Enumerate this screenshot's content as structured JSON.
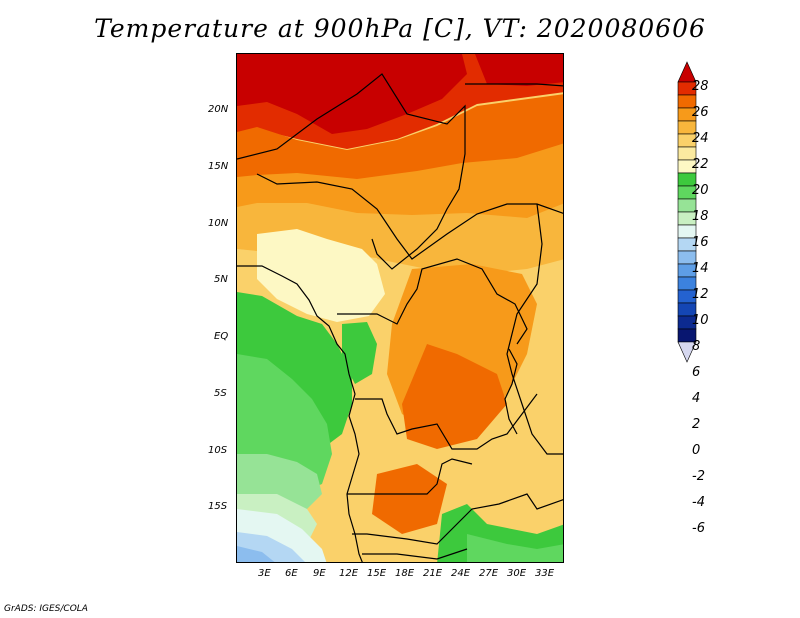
{
  "title": "Temperature at 900hPa [C], VT: 2020080606",
  "footer": "GrADS: IGES/COLA",
  "map": {
    "lat_ticks": [
      "20N",
      "15N",
      "10N",
      "5N",
      "EQ",
      "5S",
      "10S",
      "15S"
    ],
    "lon_ticks": [
      "3E",
      "6E",
      "9E",
      "12E",
      "15E",
      "18E",
      "21E",
      "24E",
      "27E",
      "30E",
      "33E"
    ]
  },
  "colorbar": {
    "labels": [
      "28",
      "26",
      "24",
      "22",
      "20",
      "18",
      "16",
      "14",
      "12",
      "10",
      "8",
      "6",
      "4",
      "2",
      "0",
      "-2",
      "-4",
      "-6"
    ],
    "colors": [
      "#c80000",
      "#e22c00",
      "#f06a00",
      "#f79a1a",
      "#f8b63c",
      "#fad16a",
      "#fbeaa0",
      "#fdf8c4",
      "#3dc93d",
      "#5fd75f",
      "#96e396",
      "#c9f0c2",
      "#e4f7f2",
      "#b4d7f3",
      "#8cbdee",
      "#5e9ee6",
      "#3c82de",
      "#2462d0",
      "#1446b4",
      "#0c2a90",
      "#081670",
      "#d6d8f0"
    ]
  },
  "legend_scale": {
    "min": -6,
    "max": 28,
    "step": 2
  }
}
